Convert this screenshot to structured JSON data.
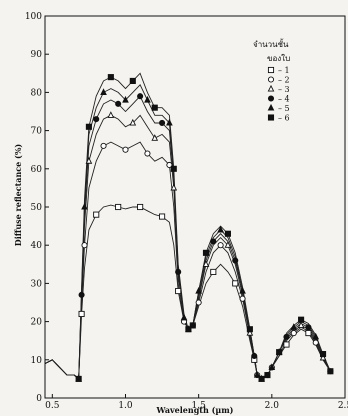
{
  "chart_data": {
    "type": "line",
    "title": "",
    "xlabel": "Wavelength (µm)",
    "ylabel": "Diffuse reflectance (%)",
    "xlim": [
      0.45,
      2.5
    ],
    "ylim": [
      0,
      100
    ],
    "x_ticks": [
      "0.5",
      "1.0",
      "1.5",
      "2.0",
      "2.5"
    ],
    "x_tick_values": [
      0.5,
      1.0,
      1.5,
      2.0,
      2.5
    ],
    "y_ticks": [
      0,
      10,
      20,
      30,
      40,
      50,
      60,
      70,
      80,
      90,
      100
    ],
    "grid": false,
    "legend_position": "top-right",
    "legend_title_lines": [
      "จำนวนชั้น",
      "ของใบ"
    ],
    "series": [
      {
        "name": "1",
        "marker": "open-square",
        "x": [
          0.45,
          0.5,
          0.55,
          0.6,
          0.65,
          0.68,
          0.7,
          0.72,
          0.75,
          0.8,
          0.85,
          0.9,
          0.95,
          1.0,
          1.05,
          1.1,
          1.15,
          1.2,
          1.25,
          1.3,
          1.33,
          1.36,
          1.4,
          1.43,
          1.46,
          1.5,
          1.55,
          1.6,
          1.65,
          1.7,
          1.75,
          1.8,
          1.85,
          1.88,
          1.9,
          1.93,
          1.97,
          2.0,
          2.05,
          2.1,
          2.15,
          2.2,
          2.25,
          2.3,
          2.35,
          2.4
        ],
        "y": [
          9,
          10,
          8,
          6,
          6,
          5,
          22,
          34,
          44,
          48,
          50,
          50.5,
          50,
          49.5,
          50,
          50,
          49,
          48,
          47.5,
          46,
          40,
          28,
          20,
          18,
          19,
          24,
          30,
          33,
          35,
          33,
          30,
          24,
          15,
          10,
          6,
          5,
          6,
          8,
          11,
          14,
          16.5,
          18,
          17,
          14,
          10,
          7
        ]
      },
      {
        "name": "2",
        "marker": "open-circle",
        "x": [
          0.45,
          0.5,
          0.55,
          0.6,
          0.65,
          0.68,
          0.7,
          0.72,
          0.75,
          0.8,
          0.85,
          0.9,
          0.95,
          1.0,
          1.05,
          1.1,
          1.15,
          1.2,
          1.25,
          1.3,
          1.33,
          1.36,
          1.4,
          1.43,
          1.46,
          1.5,
          1.55,
          1.6,
          1.65,
          1.7,
          1.75,
          1.8,
          1.85,
          1.88,
          1.9,
          1.93,
          1.97,
          2.0,
          2.05,
          2.1,
          2.15,
          2.2,
          2.25,
          2.3,
          2.35,
          2.4
        ],
        "y": [
          9,
          10,
          8,
          6,
          6,
          5,
          24,
          40,
          55,
          62,
          66,
          67,
          66,
          65,
          66,
          67,
          64,
          62,
          63,
          61,
          50,
          30,
          20,
          18,
          19,
          25,
          33,
          38,
          40,
          38,
          33,
          26,
          16,
          10,
          6,
          5,
          6,
          8,
          11,
          15,
          17,
          18.5,
          17.5,
          14.5,
          10,
          7
        ]
      },
      {
        "name": "3",
        "marker": "open-triangle",
        "x": [
          0.45,
          0.5,
          0.55,
          0.6,
          0.65,
          0.68,
          0.7,
          0.72,
          0.75,
          0.8,
          0.85,
          0.9,
          0.95,
          1.0,
          1.05,
          1.1,
          1.15,
          1.2,
          1.25,
          1.3,
          1.33,
          1.36,
          1.4,
          1.43,
          1.46,
          1.5,
          1.55,
          1.6,
          1.65,
          1.7,
          1.75,
          1.8,
          1.85,
          1.88,
          1.9,
          1.93,
          1.97,
          2.0,
          2.05,
          2.1,
          2.15,
          2.2,
          2.25,
          2.3,
          2.35,
          2.4
        ],
        "y": [
          9,
          10,
          8,
          6,
          6,
          5,
          26,
          45,
          62,
          69,
          73,
          74,
          73,
          71,
          72,
          74,
          71,
          68,
          69,
          67,
          55,
          32,
          21,
          18,
          19,
          26,
          35,
          40,
          42,
          40,
          35,
          27,
          17,
          11,
          6,
          5,
          6,
          8,
          12,
          15.5,
          17.5,
          19,
          18,
          15,
          10.5,
          7
        ]
      },
      {
        "name": "4",
        "marker": "filled-circle",
        "x": [
          0.45,
          0.5,
          0.55,
          0.6,
          0.65,
          0.68,
          0.7,
          0.72,
          0.75,
          0.8,
          0.85,
          0.9,
          0.95,
          1.0,
          1.05,
          1.1,
          1.15,
          1.2,
          1.25,
          1.3,
          1.33,
          1.36,
          1.4,
          1.43,
          1.46,
          1.5,
          1.55,
          1.6,
          1.65,
          1.7,
          1.75,
          1.8,
          1.85,
          1.88,
          1.9,
          1.93,
          1.97,
          2.0,
          2.05,
          2.1,
          2.15,
          2.2,
          2.25,
          2.3,
          2.35,
          2.4
        ],
        "y": [
          9,
          10,
          8,
          6,
          6,
          5,
          27,
          48,
          66,
          73,
          77,
          78,
          77,
          75,
          77,
          79,
          75,
          72,
          72,
          70,
          57,
          33,
          21,
          18,
          19,
          27,
          36,
          41,
          43,
          41,
          36,
          28,
          17,
          11,
          6,
          5,
          6,
          8,
          12,
          16,
          18,
          19.5,
          18.5,
          15.5,
          11,
          7
        ]
      },
      {
        "name": "5",
        "marker": "filled-triangle",
        "x": [
          0.45,
          0.5,
          0.55,
          0.6,
          0.65,
          0.68,
          0.7,
          0.72,
          0.75,
          0.8,
          0.85,
          0.9,
          0.95,
          1.0,
          1.05,
          1.1,
          1.15,
          1.2,
          1.25,
          1.3,
          1.33,
          1.36,
          1.4,
          1.43,
          1.46,
          1.5,
          1.55,
          1.6,
          1.65,
          1.7,
          1.75,
          1.8,
          1.85,
          1.88,
          1.9,
          1.93,
          1.97,
          2.0,
          2.05,
          2.1,
          2.15,
          2.2,
          2.25,
          2.3,
          2.35,
          2.4
        ],
        "y": [
          9,
          10,
          8,
          6,
          6,
          5,
          28,
          50,
          69,
          76,
          80,
          81,
          80,
          78,
          80,
          82,
          78,
          74,
          74,
          72,
          58,
          34,
          21,
          18,
          19,
          28,
          37,
          42,
          44,
          42,
          37,
          28,
          18,
          11,
          6,
          5,
          6,
          8,
          12,
          16.5,
          18.5,
          20,
          19,
          16,
          11,
          7
        ]
      },
      {
        "name": "6",
        "marker": "filled-square",
        "x": [
          0.45,
          0.5,
          0.55,
          0.6,
          0.65,
          0.68,
          0.7,
          0.72,
          0.75,
          0.8,
          0.85,
          0.9,
          0.95,
          1.0,
          1.05,
          1.1,
          1.15,
          1.2,
          1.25,
          1.3,
          1.33,
          1.36,
          1.4,
          1.43,
          1.46,
          1.5,
          1.55,
          1.6,
          1.65,
          1.7,
          1.75,
          1.8,
          1.85,
          1.88,
          1.9,
          1.93,
          1.97,
          2.0,
          2.05,
          2.1,
          2.15,
          2.2,
          2.25,
          2.3,
          2.35,
          2.4
        ],
        "y": [
          9,
          10,
          8,
          6,
          6,
          5,
          29,
          52,
          71,
          79,
          83,
          84,
          83,
          81,
          83,
          85,
          80,
          76,
          76,
          74,
          60,
          35,
          22,
          18,
          19,
          28,
          38,
          43,
          45,
          43,
          38,
          29,
          18,
          11,
          6,
          5,
          6,
          8,
          12,
          17,
          19,
          20.5,
          19.5,
          16.5,
          11.5,
          7
        ]
      }
    ]
  }
}
